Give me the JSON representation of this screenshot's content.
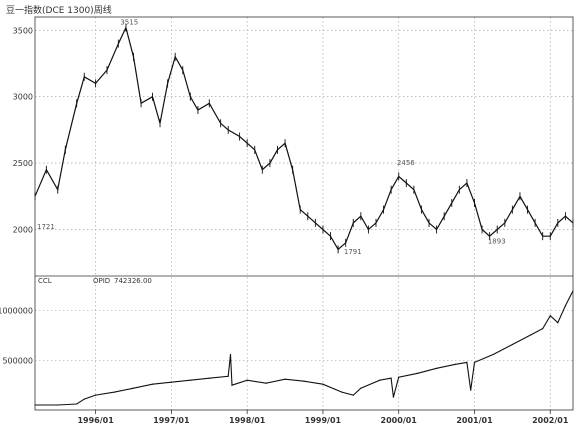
{
  "title": "豆一指数(DCE 1300)周线",
  "chart_data": [
    {
      "type": "line",
      "name": "price-panel",
      "ylim": [
        1650,
        3600
      ],
      "yticks": [
        2000,
        2500,
        3000,
        3500
      ],
      "ytick_labels": [
        "2000",
        "2500",
        "3000",
        "3500"
      ],
      "x_start": 1995.2,
      "x_end": 2002.3,
      "x": [
        1995.2,
        1995.35,
        1995.5,
        1995.6,
        1995.75,
        1995.85,
        1996.0,
        1996.15,
        1996.3,
        1996.4,
        1996.5,
        1996.6,
        1996.75,
        1996.85,
        1996.95,
        1997.05,
        1997.15,
        1997.25,
        1997.35,
        1997.5,
        1997.65,
        1997.75,
        1997.9,
        1998.0,
        1998.1,
        1998.2,
        1998.3,
        1998.4,
        1998.5,
        1998.6,
        1998.7,
        1998.8,
        1998.9,
        1999.0,
        1999.1,
        1999.2,
        1999.3,
        1999.4,
        1999.5,
        1999.6,
        1999.7,
        1999.8,
        1999.9,
        2000.0,
        2000.1,
        2000.2,
        2000.3,
        2000.4,
        2000.5,
        2000.6,
        2000.7,
        2000.8,
        2000.9,
        2001.0,
        2001.1,
        2001.2,
        2001.3,
        2001.4,
        2001.5,
        2001.6,
        2001.7,
        2001.8,
        2001.9,
        2002.0,
        2002.1,
        2002.2,
        2002.3
      ],
      "values": [
        2250,
        2450,
        2300,
        2600,
        2950,
        3150,
        3100,
        3200,
        3400,
        3520,
        3300,
        2950,
        3000,
        2800,
        3100,
        3300,
        3200,
        3000,
        2900,
        2950,
        2800,
        2750,
        2700,
        2650,
        2600,
        2450,
        2500,
        2600,
        2650,
        2450,
        2150,
        2100,
        2050,
        2000,
        1950,
        1850,
        1900,
        2050,
        2100,
        2000,
        2050,
        2150,
        2300,
        2400,
        2350,
        2300,
        2150,
        2050,
        2000,
        2100,
        2200,
        2300,
        2350,
        2200,
        2000,
        1950,
        2000,
        2050,
        2150,
        2250,
        2150,
        2050,
        1950,
        1950,
        2050,
        2100,
        2050
      ],
      "annotations": [
        {
          "label": "1721",
          "x": 1995.2,
          "y": 1990
        },
        {
          "label": "3515",
          "x": 1996.3,
          "y": 3530
        },
        {
          "label": "1791",
          "x": 1999.25,
          "y": 1800
        },
        {
          "label": "2456",
          "x": 1999.95,
          "y": 2470
        },
        {
          "label": "1893",
          "x": 2001.15,
          "y": 1880
        }
      ],
      "legend": [
        "CCL"
      ],
      "grid": true
    },
    {
      "type": "line",
      "name": "open-interest-panel",
      "ylabel": "OPID",
      "readout": "742326.00",
      "ylim": [
        0,
        1350000
      ],
      "yticks": [
        500000,
        1000000
      ],
      "ytick_labels": [
        "500000",
        "1000000"
      ],
      "x_start": 1995.2,
      "x_end": 2002.3,
      "x": [
        1995.2,
        1995.5,
        1995.75,
        1995.85,
        1996.0,
        1996.25,
        1996.5,
        1996.75,
        1997.0,
        1997.25,
        1997.5,
        1997.75,
        1997.78,
        1997.8,
        1998.0,
        1998.25,
        1998.5,
        1998.75,
        1999.0,
        1999.25,
        1999.4,
        1999.5,
        1999.75,
        1999.9,
        1999.93,
        2000.0,
        2000.25,
        2000.5,
        2000.75,
        2000.9,
        2000.95,
        2001.0,
        2001.25,
        2001.5,
        2001.75,
        2001.9,
        2002.0,
        2002.1,
        2002.2,
        2002.3
      ],
      "values": [
        50000,
        50000,
        60000,
        110000,
        150000,
        180000,
        220000,
        260000,
        280000,
        300000,
        320000,
        340000,
        560000,
        250000,
        300000,
        270000,
        310000,
        290000,
        260000,
        180000,
        150000,
        220000,
        300000,
        320000,
        130000,
        330000,
        370000,
        420000,
        460000,
        480000,
        200000,
        480000,
        560000,
        660000,
        760000,
        820000,
        950000,
        880000,
        1050000,
        1200000
      ],
      "grid": true
    }
  ],
  "x_axis": {
    "ticks": [
      1996.0,
      1997.0,
      1998.0,
      1999.0,
      2000.0,
      2001.0,
      2002.0
    ],
    "labels": [
      "1996/01",
      "1997/01",
      "1998/01",
      "1999/01",
      "2000/01",
      "2001/01",
      "2002/01"
    ]
  }
}
